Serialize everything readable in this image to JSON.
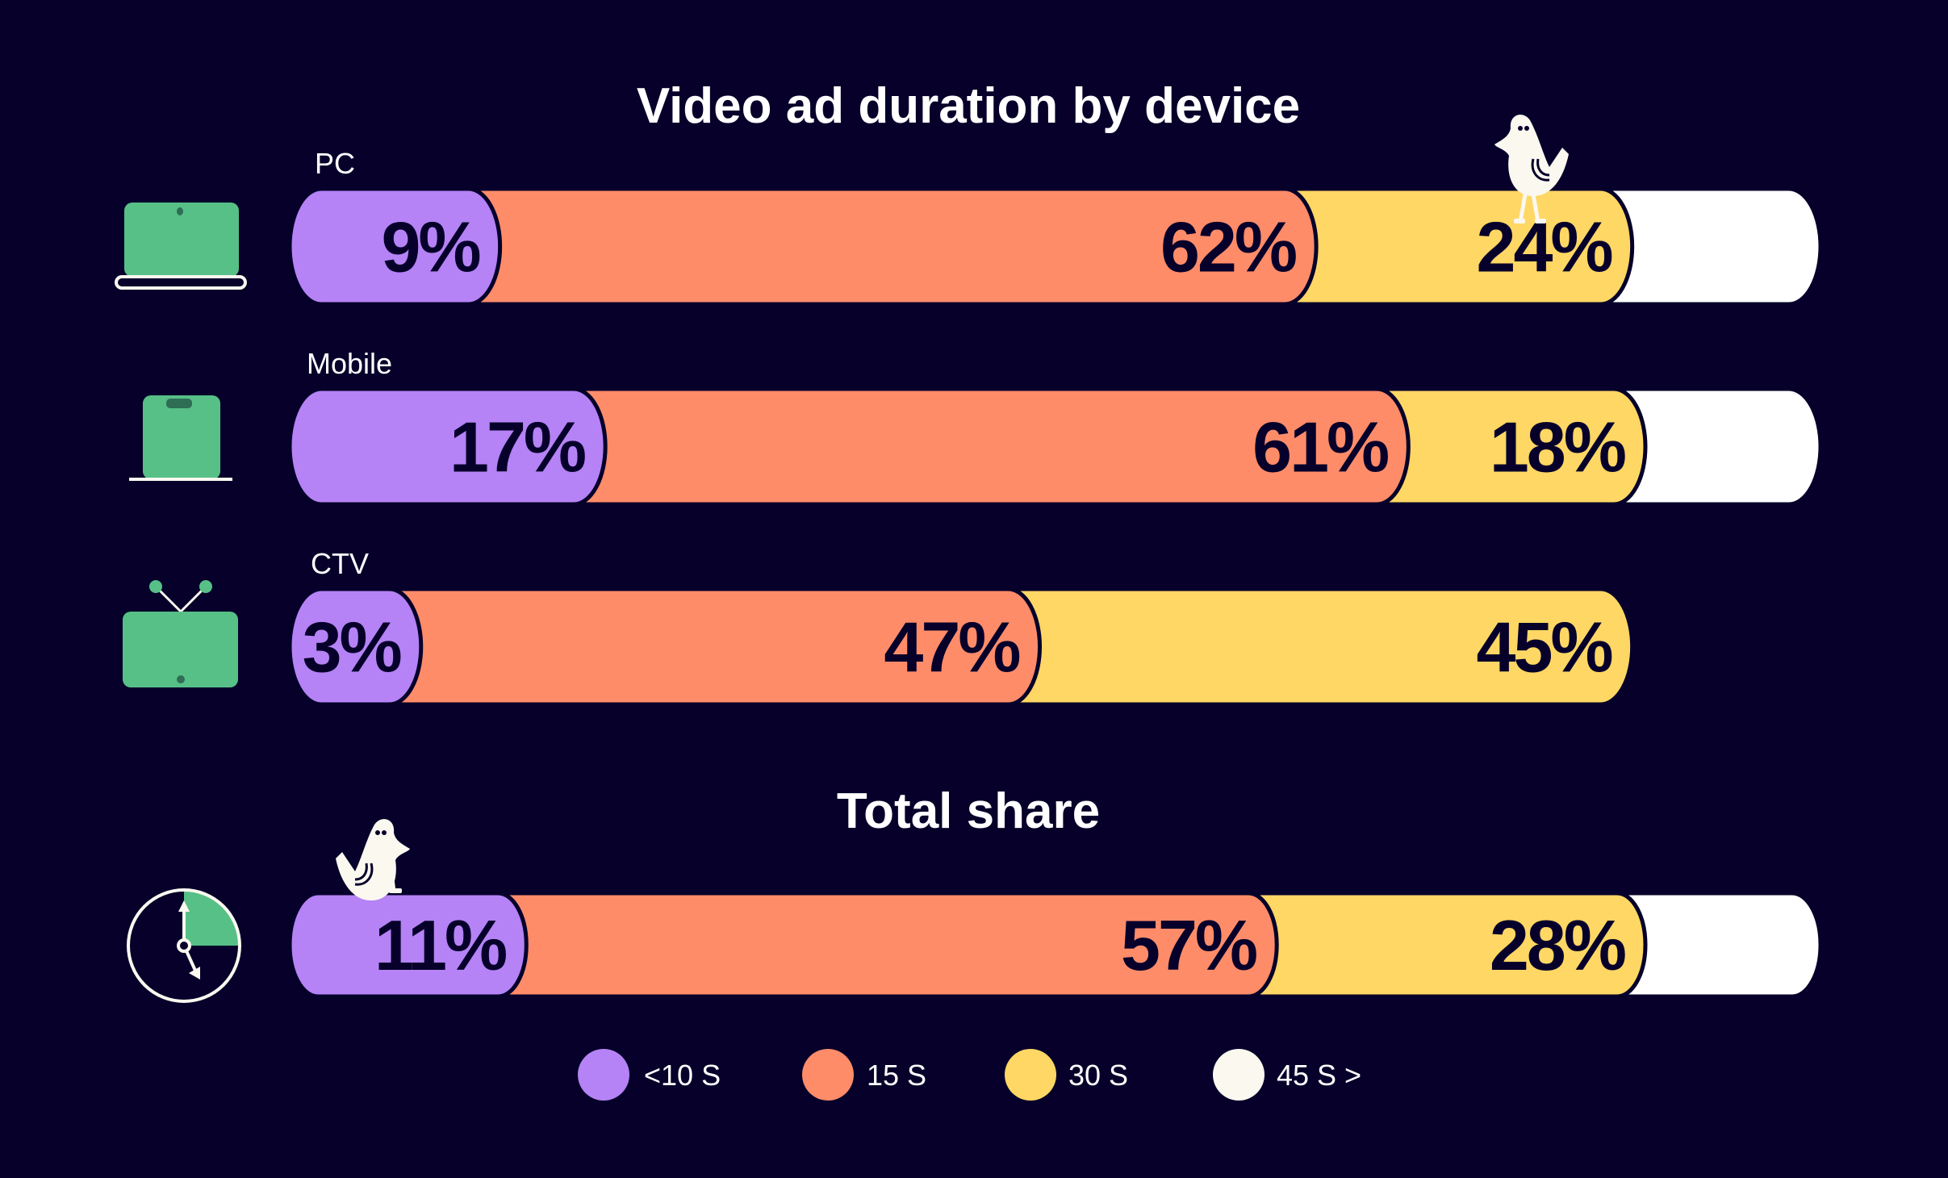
{
  "chart_data": {
    "type": "bar",
    "orientation": "horizontal",
    "stacked": true,
    "title": "Video ad duration by device",
    "subtitle": "Total share",
    "categories": [
      "PC",
      "Mobile",
      "CTV",
      "Total share"
    ],
    "series": [
      {
        "name": "<10 S",
        "color": "#b583f5",
        "values": [
          9,
          17,
          3,
          11
        ],
        "labels": [
          "9%",
          "17%",
          "3%",
          "11%"
        ]
      },
      {
        "name": "15 S",
        "color": "#ff8c69",
        "values": [
          62,
          61,
          47,
          57
        ],
        "labels": [
          "62%",
          "61%",
          "47%",
          "57%"
        ]
      },
      {
        "name": "30 S",
        "color": "#ffd764",
        "values": [
          24,
          18,
          45,
          28
        ],
        "labels": [
          "24%",
          "18%",
          "45%",
          "28%"
        ]
      },
      {
        "name": "45 S >",
        "color": "#ffffff",
        "values": [
          5,
          4,
          0,
          4
        ],
        "labels": [
          "",
          "",
          "",
          ""
        ]
      }
    ],
    "xlim": [
      0,
      100
    ],
    "grid": false,
    "legend_position": "bottom",
    "row_icons": [
      "laptop-icon",
      "mobile-phone-icon",
      "tv-icon",
      "clock-icon"
    ]
  },
  "colors": {
    "background": "#06002a",
    "icon_green": "#57c087",
    "text_dark": "#06002a"
  }
}
